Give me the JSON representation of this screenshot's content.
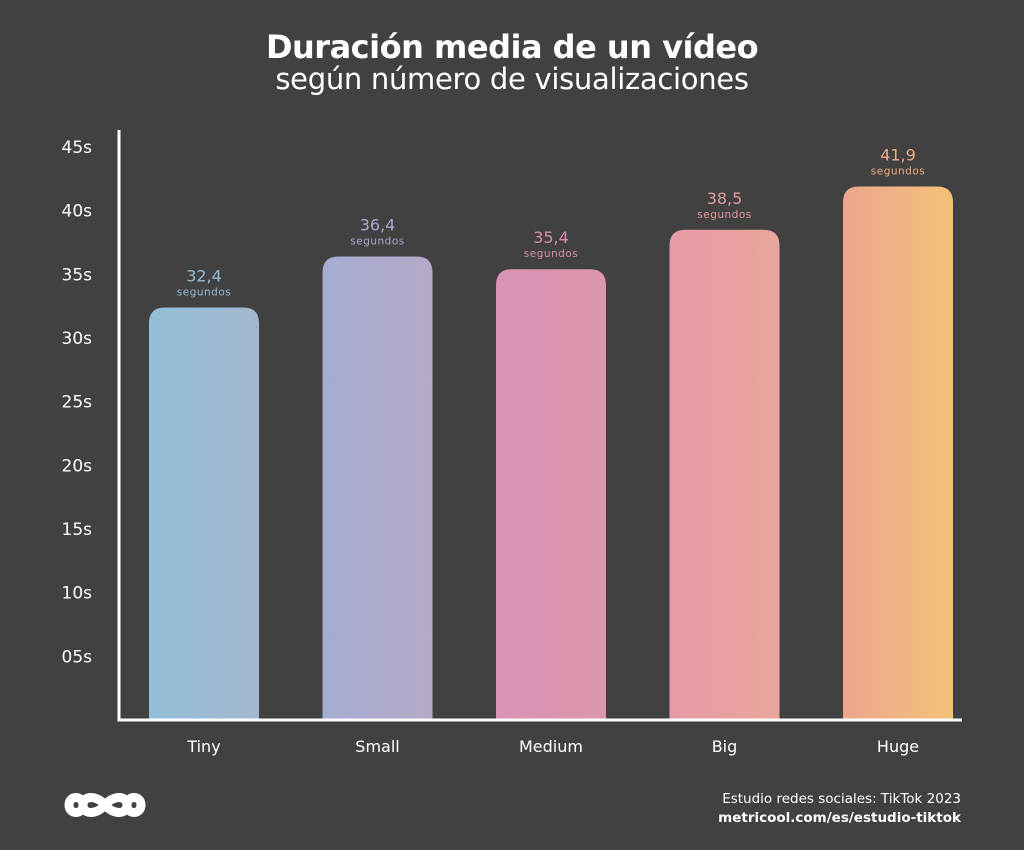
{
  "header": {
    "title": "Duración media de un vídeo",
    "subtitle": "según número de visualizaciones"
  },
  "chart_data": {
    "type": "bar",
    "title": "Duración media de un vídeo",
    "subtitle": "según número de visualizaciones",
    "categories": [
      "Tiny",
      "Small",
      "Medium",
      "Big",
      "Huge"
    ],
    "values": [
      32.4,
      36.4,
      35.4,
      38.5,
      41.9
    ],
    "value_labels": [
      "32,4",
      "36,4",
      "35,4",
      "38,5",
      "41,9"
    ],
    "value_unit_label": "segundos",
    "y_ticks": [
      {
        "value": 5,
        "label": "05s"
      },
      {
        "value": 10,
        "label": "10s"
      },
      {
        "value": 15,
        "label": "15s"
      },
      {
        "value": 20,
        "label": "20s"
      },
      {
        "value": 25,
        "label": "25s"
      },
      {
        "value": 30,
        "label": "30s"
      },
      {
        "value": 35,
        "label": "35s"
      },
      {
        "value": 40,
        "label": "40s"
      },
      {
        "value": 45,
        "label": "45s"
      }
    ],
    "ylim": [
      0,
      45
    ],
    "xlabel": "",
    "ylabel": "",
    "grid": false,
    "legend": "none",
    "bar_colors": [
      [
        "#93bfd8",
        "#a2b7cf"
      ],
      [
        "#a5add2",
        "#b6a9c8"
      ],
      [
        "#d993b6",
        "#dc96ae"
      ],
      [
        "#e89aa8",
        "#e9a69c"
      ],
      [
        "#eea590",
        "#f2c278"
      ]
    ],
    "label_colors": [
      "#93bcd6",
      "#a6a9cf",
      "#d88aae",
      "#e39a9c",
      "#eeaa82"
    ]
  },
  "footer": {
    "source": "Estudio redes sociales: TikTok 2023",
    "url": "metricool.com/es/estudio-tiktok"
  }
}
